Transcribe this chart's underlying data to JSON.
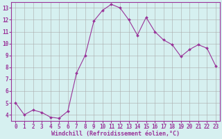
{
  "x": [
    0,
    1,
    2,
    3,
    4,
    5,
    6,
    7,
    8,
    9,
    10,
    11,
    12,
    13,
    14,
    15,
    16,
    17,
    18,
    19,
    20,
    21,
    22,
    23
  ],
  "y": [
    5.0,
    4.0,
    4.4,
    4.2,
    3.8,
    3.7,
    4.3,
    7.5,
    9.0,
    11.9,
    12.8,
    13.3,
    13.0,
    12.0,
    10.7,
    12.2,
    11.0,
    10.3,
    9.9,
    8.9,
    9.5,
    9.9,
    9.6,
    8.1
  ],
  "line_color": "#993399",
  "marker": "D",
  "marker_size": 2.0,
  "bg_color": "#d6f0f0",
  "grid_color": "#aaaaaa",
  "xlabel": "Windchill (Refroidissement éolien,°C)",
  "label_color": "#993399",
  "xlim": [
    -0.5,
    23.5
  ],
  "ylim": [
    3.5,
    13.5
  ],
  "yticks": [
    4,
    5,
    6,
    7,
    8,
    9,
    10,
    11,
    12,
    13
  ],
  "xticks": [
    0,
    1,
    2,
    3,
    4,
    5,
    6,
    7,
    8,
    9,
    10,
    11,
    12,
    13,
    14,
    15,
    16,
    17,
    18,
    19,
    20,
    21,
    22,
    23
  ],
  "tick_label_fontsize": 5.5,
  "xlabel_fontsize": 6.0,
  "spine_color": "#993399",
  "tick_color": "#993399"
}
